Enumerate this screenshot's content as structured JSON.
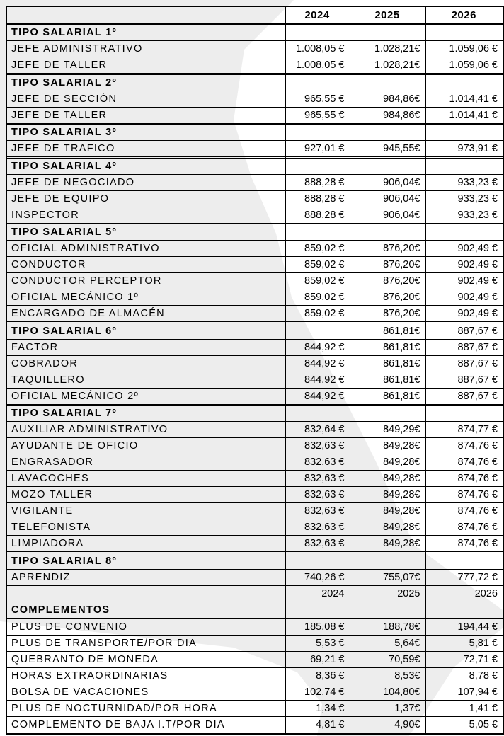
{
  "page": {
    "watermark_color": "#ededed",
    "border_color": "#000000",
    "background_color": "#ffffff",
    "text_color": "#000000"
  },
  "table": {
    "columns": [
      "2024",
      "2025",
      "2026"
    ],
    "rows": [
      {
        "t": "head",
        "label": "",
        "v": [
          "2024",
          "2025",
          "2026"
        ]
      },
      {
        "t": "spacer",
        "label": "",
        "v": [
          "",
          "",
          ""
        ]
      },
      {
        "t": "sec",
        "label": "TIPO SALARIAL 1º",
        "v": [
          "",
          "",
          ""
        ]
      },
      {
        "t": "item",
        "label": "JEFE ADMINISTRATIVO",
        "v": [
          "1.008,05 €",
          "1.028,21€",
          "1.059,06 €"
        ]
      },
      {
        "t": "item",
        "label": "JEFE DE TALLER",
        "v": [
          "1.008,05 €",
          "1.028,21€",
          "1.059,06 €"
        ]
      },
      {
        "t": "spacer",
        "label": "",
        "v": [
          "",
          "",
          ""
        ]
      },
      {
        "t": "sec",
        "label": "TIPO SALARIAL 2º",
        "v": [
          "",
          "",
          ""
        ]
      },
      {
        "t": "item",
        "label": "JEFE DE SECCIÓN",
        "v": [
          "965,55 €",
          "984,86€",
          "1.014,41 €"
        ]
      },
      {
        "t": "item",
        "label": "JEFE DE TALLER",
        "v": [
          "965,55 €",
          "984,86€",
          "1.014,41 €"
        ]
      },
      {
        "t": "spacer",
        "label": "",
        "v": [
          "",
          "",
          ""
        ]
      },
      {
        "t": "sec",
        "label": "TIPO SALARIAL 3º",
        "v": [
          "",
          "",
          ""
        ]
      },
      {
        "t": "item",
        "label": "JEFE DE TRAFICO",
        "v": [
          "927,01 €",
          "945,55€",
          "973,91 €"
        ]
      },
      {
        "t": "spacer",
        "label": "",
        "v": [
          "",
          "",
          ""
        ]
      },
      {
        "t": "sec",
        "label": "TIPO SALARIAL 4º",
        "v": [
          "",
          "",
          ""
        ]
      },
      {
        "t": "item",
        "label": "JEFE DE NEGOCIADO",
        "v": [
          "888,28 €",
          "906,04€",
          "933,23 €"
        ]
      },
      {
        "t": "item",
        "label": "JEFE DE EQUIPO",
        "v": [
          "888,28 €",
          "906,04€",
          "933,23 €"
        ]
      },
      {
        "t": "item",
        "label": "INSPECTOR",
        "v": [
          "888,28 €",
          "906,04€",
          "933,23 €"
        ]
      },
      {
        "t": "spacer",
        "label": "",
        "v": [
          "",
          "",
          ""
        ]
      },
      {
        "t": "sec",
        "label": "TIPO SALARIAL 5º",
        "v": [
          "",
          "",
          ""
        ]
      },
      {
        "t": "item",
        "label": "OFICIAL ADMINISTRATIVO",
        "v": [
          "859,02 €",
          "876,20€",
          "902,49 €"
        ]
      },
      {
        "t": "item",
        "label": "CONDUCTOR",
        "v": [
          "859,02 €",
          "876,20€",
          "902,49 €"
        ]
      },
      {
        "t": "item",
        "label": "CONDUCTOR PERCEPTOR",
        "v": [
          "859,02 €",
          "876,20€",
          "902,49 €"
        ]
      },
      {
        "t": "item",
        "label": "OFICIAL MECÁNICO 1º",
        "v": [
          "859,02 €",
          "876,20€",
          "902,49 €"
        ]
      },
      {
        "t": "item",
        "label": "ENCARGADO DE ALMACÉN",
        "v": [
          "859,02 €",
          "876,20€",
          "902,49 €"
        ]
      },
      {
        "t": "spacer",
        "label": "",
        "v": [
          "",
          "",
          ""
        ]
      },
      {
        "t": "sec",
        "label": "TIPO SALARIAL 6º",
        "v": [
          "",
          "861,81€",
          "887,67 €"
        ]
      },
      {
        "t": "item",
        "label": "FACTOR",
        "v": [
          "844,92 €",
          "861,81€",
          "887,67 €"
        ]
      },
      {
        "t": "item",
        "label": "COBRADOR",
        "v": [
          "844,92 €",
          "861,81€",
          "887,67 €"
        ]
      },
      {
        "t": "item",
        "label": "TAQUILLERO",
        "v": [
          "844,92 €",
          "861,81€",
          "887,67 €"
        ]
      },
      {
        "t": "item",
        "label": "OFICIAL MECÁNICO 2º",
        "v": [
          "844,92 €",
          "861,81€",
          "887,67 €"
        ]
      },
      {
        "t": "spacer",
        "label": "",
        "v": [
          "",
          "",
          ""
        ]
      },
      {
        "t": "sec",
        "label": "TIPO SALARIAL 7º",
        "v": [
          "",
          "",
          ""
        ]
      },
      {
        "t": "item",
        "label": "AUXILIAR ADMINISTRATIVO",
        "v": [
          "832,64 €",
          "849,29€",
          "874,77 €"
        ]
      },
      {
        "t": "item",
        "label": "AYUDANTE DE OFICIO",
        "v": [
          "832,63 €",
          "849,28€",
          "874,76 €"
        ]
      },
      {
        "t": "item",
        "label": "ENGRASADOR",
        "v": [
          "832,63 €",
          "849,28€",
          "874,76 €"
        ]
      },
      {
        "t": "item",
        "label": "LAVACOCHES",
        "v": [
          "832,63 €",
          "849,28€",
          "874,76 €"
        ]
      },
      {
        "t": "item",
        "label": "MOZO TALLER",
        "v": [
          "832,63 €",
          "849,28€",
          "874,76 €"
        ]
      },
      {
        "t": "item",
        "label": "VIGILANTE",
        "v": [
          "832,63 €",
          "849,28€",
          "874,76 €"
        ]
      },
      {
        "t": "item",
        "label": "TELEFONISTA",
        "v": [
          "832,63 €",
          "849,28€",
          "874,76 €"
        ]
      },
      {
        "t": "item",
        "label": "LIMPIADORA",
        "v": [
          "832,63 €",
          "849,28€",
          "874,76 €"
        ]
      },
      {
        "t": "spacer",
        "label": "",
        "v": [
          "",
          "",
          ""
        ]
      },
      {
        "t": "sec",
        "label": "TIPO SALARIAL 8º",
        "v": [
          "",
          "",
          ""
        ]
      },
      {
        "t": "item",
        "label": "APRENDIZ",
        "v": [
          "740,26 €",
          "755,07€",
          "777,72 €"
        ]
      },
      {
        "t": "years",
        "label": "",
        "v": [
          "2024",
          "2025",
          "2026"
        ]
      },
      {
        "t": "sec",
        "label": "COMPLEMENTOS",
        "v": [
          "",
          "",
          ""
        ]
      },
      {
        "t": "spacer",
        "label": "",
        "v": [
          "",
          "",
          ""
        ]
      },
      {
        "t": "item",
        "label": "PLUS DE CONVENIO",
        "v": [
          "185,08 €",
          "188,78€",
          "194,44 €"
        ]
      },
      {
        "t": "item",
        "label": "PLUS DE TRANSPORTE/POR DIA",
        "v": [
          "5,53 €",
          "5,64€",
          "5,81 €"
        ]
      },
      {
        "t": "item",
        "label": "QUEBRANTO DE MONEDA",
        "v": [
          "69,21 €",
          "70,59€",
          "72,71 €"
        ]
      },
      {
        "t": "item",
        "label": "HORAS EXTRAORDINARIAS",
        "v": [
          "8,36 €",
          "8,53€",
          "8,78 €"
        ]
      },
      {
        "t": "item",
        "label": "BOLSA DE VACACIONES",
        "v": [
          "102,74 €",
          "104,80€",
          "107,94 €"
        ]
      },
      {
        "t": "item",
        "label": "PLUS DE NOCTURNIDAD/POR HORA",
        "v": [
          "1,34 €",
          "1,37€",
          "1,41 €"
        ]
      },
      {
        "t": "item",
        "label": "COMPLEMENTO DE BAJA I.T/POR DIA",
        "v": [
          "4,81 €",
          "4,90€",
          "5,05 €"
        ]
      }
    ]
  }
}
